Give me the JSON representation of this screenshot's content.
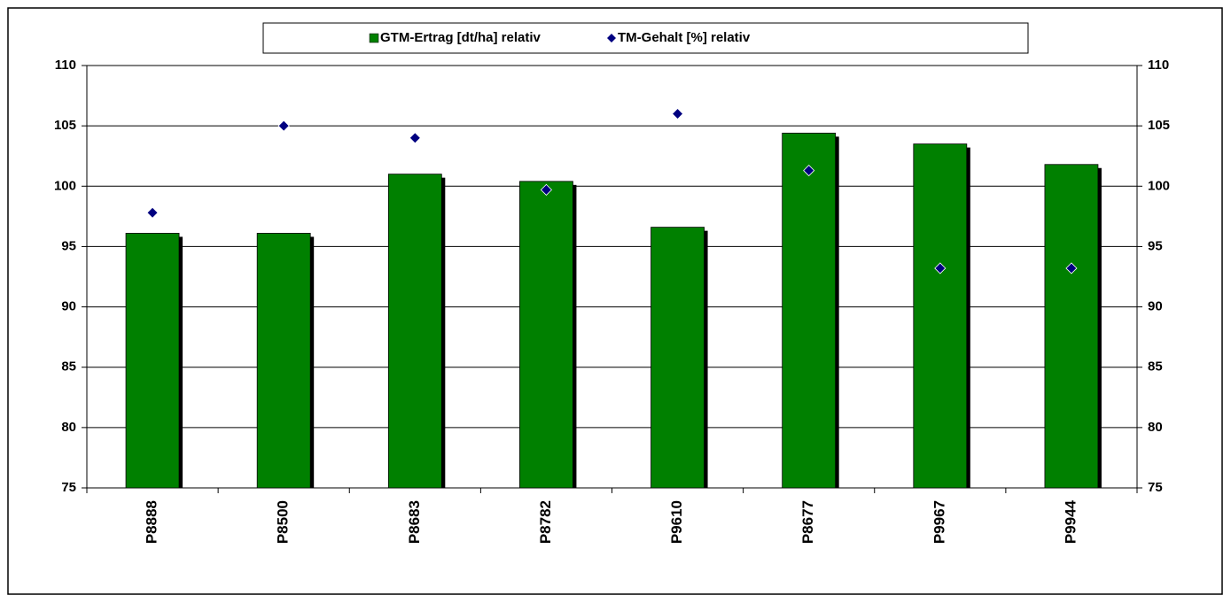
{
  "chart_data": {
    "type": "bar",
    "categories": [
      "P8888",
      "P8500",
      "P8683",
      "P8782",
      "P9610",
      "P8677",
      "P9967",
      "P9944"
    ],
    "series": [
      {
        "name": "GTM-Ertrag [dt/ha] relativ",
        "type": "bar",
        "color": "#008000",
        "values": [
          96.1,
          96.1,
          101.0,
          100.4,
          96.6,
          104.4,
          103.5,
          101.8
        ]
      },
      {
        "name": "TM-Gehalt [%] relativ",
        "type": "scatter",
        "color": "#000080",
        "axis": "y2",
        "values": [
          97.8,
          105.0,
          104.0,
          99.7,
          106.0,
          101.3,
          93.2,
          93.2
        ]
      }
    ],
    "ylim": [
      75,
      110
    ],
    "yticks": [
      75,
      80,
      85,
      90,
      95,
      100,
      105,
      110
    ],
    "y2lim": [
      75,
      110
    ],
    "y2ticks": [
      75,
      80,
      85,
      90,
      95,
      100,
      105,
      110
    ],
    "grid": true,
    "legend": "top"
  }
}
